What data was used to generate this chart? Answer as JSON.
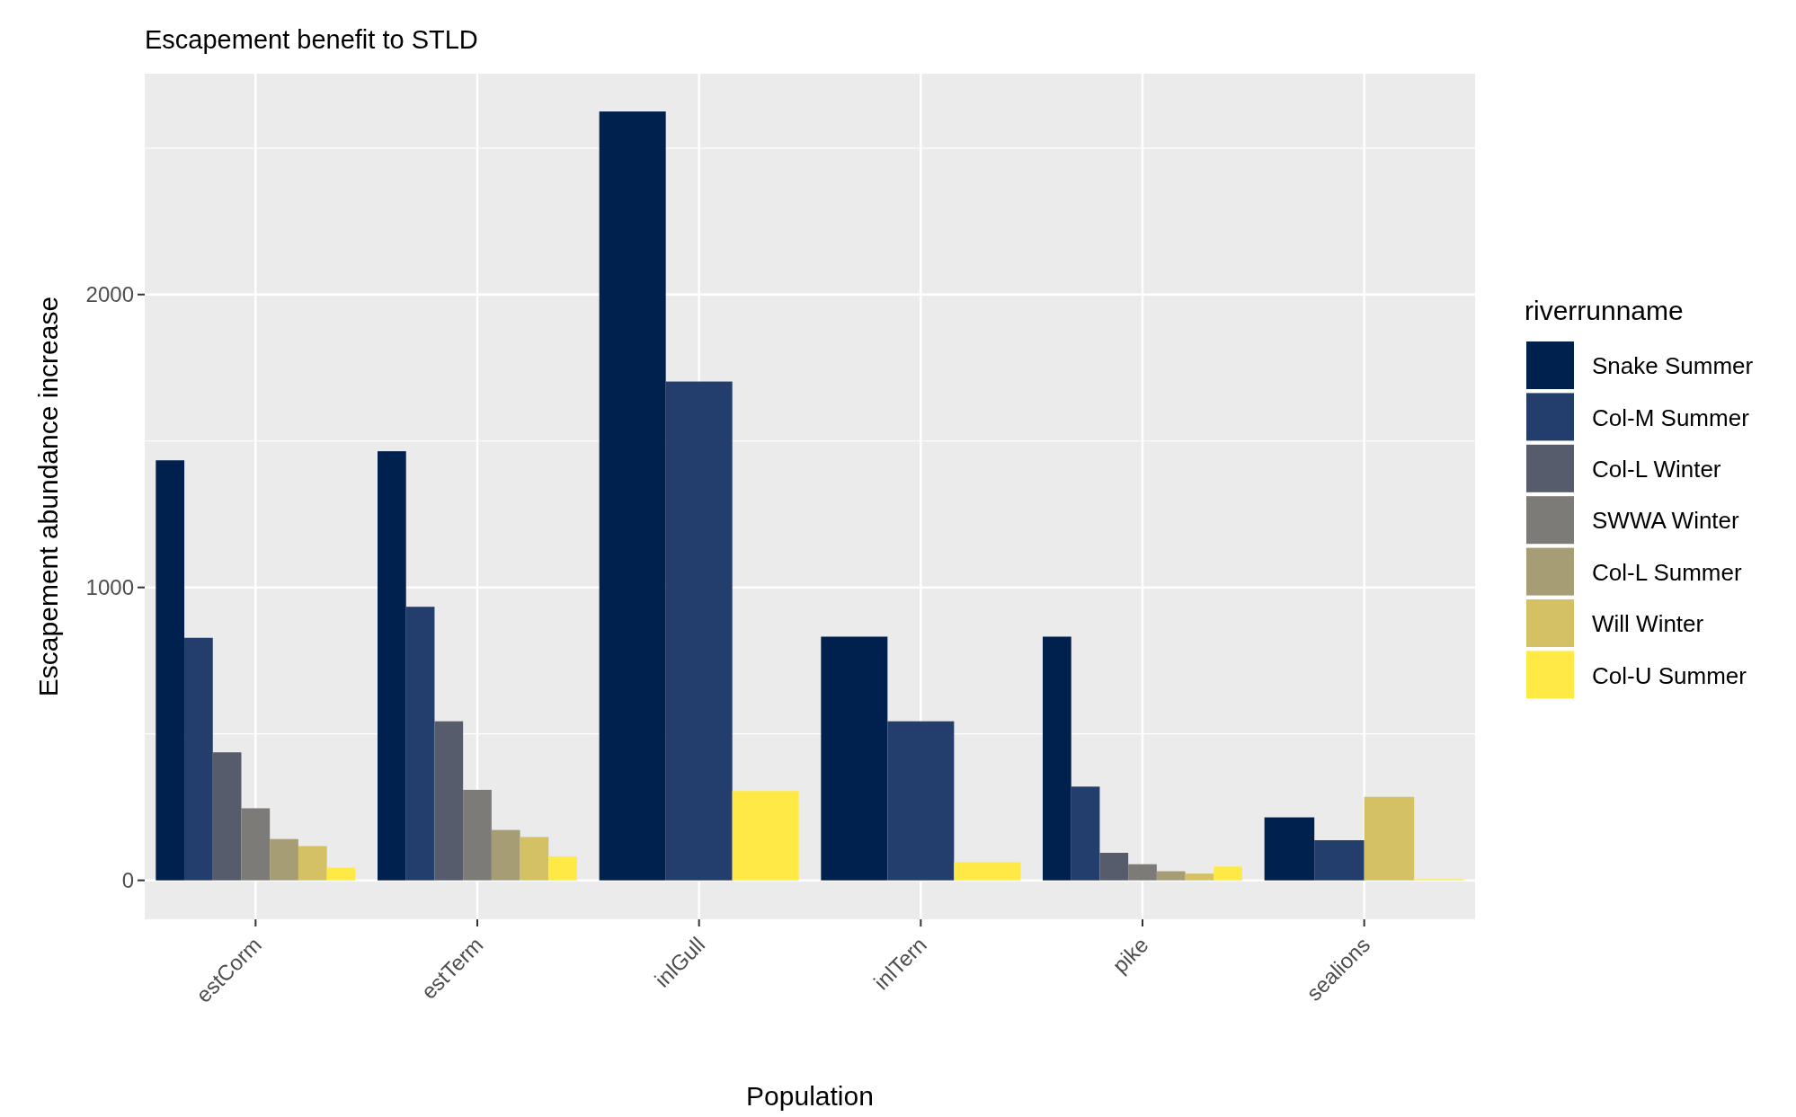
{
  "chart_data": {
    "type": "bar",
    "title": "Escapement benefit to  STLD",
    "xlabel": "Population",
    "ylabel": "Escapement abundance increase",
    "legend_title": "riverrunname",
    "categories": [
      "estCorm",
      "estTerm",
      "inlGull",
      "inlTern",
      "pike",
      "sealions"
    ],
    "series": [
      {
        "name": "Snake Summer",
        "color": "#00204d",
        "values": [
          1434,
          1465,
          2625,
          832,
          832,
          215
        ]
      },
      {
        "name": "Col-M Summer",
        "color": "#233e6c",
        "values": [
          828,
          934,
          1703,
          543,
          320,
          137
        ]
      },
      {
        "name": "Col-L Winter",
        "color": "#575c6d",
        "values": [
          437,
          543,
          null,
          null,
          94,
          null
        ]
      },
      {
        "name": "SWWA Winter",
        "color": "#7c7b78",
        "values": [
          246,
          309,
          null,
          null,
          55,
          null
        ]
      },
      {
        "name": "Col-L Summer",
        "color": "#a69d75",
        "values": [
          141,
          172,
          null,
          null,
          31,
          null
        ]
      },
      {
        "name": "Will Winter",
        "color": "#d3c164",
        "values": [
          117,
          148,
          null,
          null,
          23,
          285
        ]
      },
      {
        "name": "Col-U Summer",
        "color": "#ffe945",
        "values": [
          43,
          82,
          305,
          62,
          47,
          4
        ]
      }
    ],
    "ylim": [
      -133,
      2754
    ],
    "yticks": [
      0,
      1000,
      2000
    ],
    "grid": true,
    "legend": "right"
  }
}
